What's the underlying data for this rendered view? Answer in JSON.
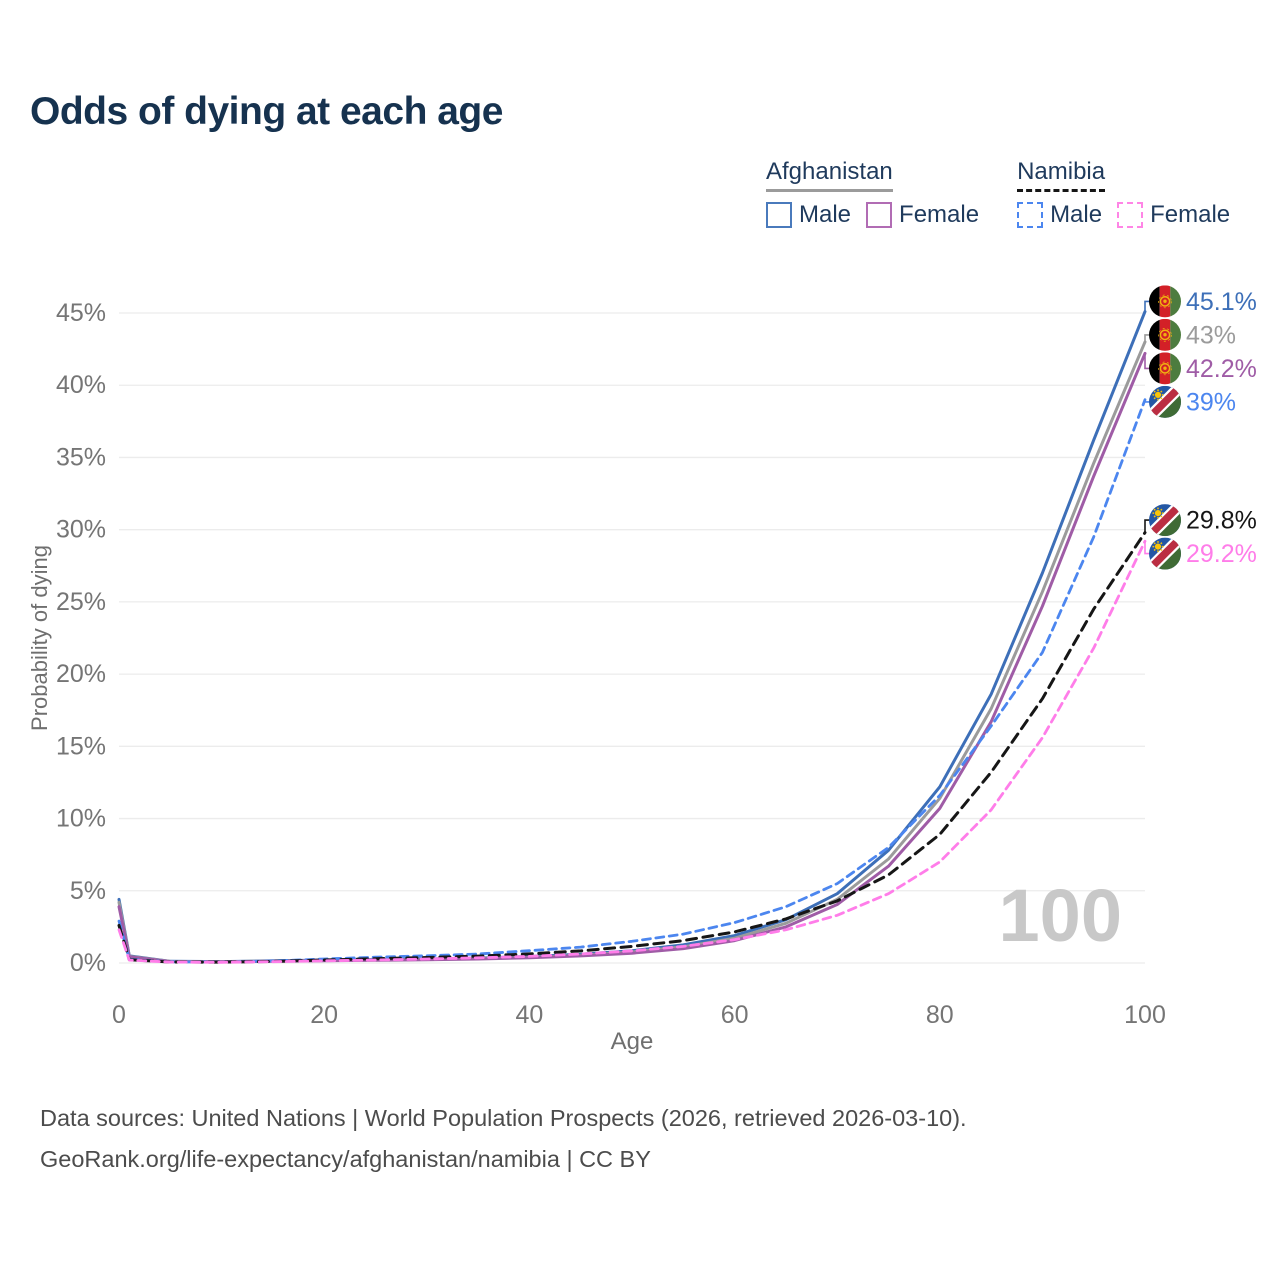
{
  "title": "Odds of dying at each age",
  "legend": {
    "afghanistan": {
      "label": "Afghanistan",
      "male_label": "Male",
      "female_label": "Female"
    },
    "namibia": {
      "label": "Namibia",
      "male_label": "Male",
      "female_label": "Female"
    }
  },
  "watermark": "100",
  "footer": {
    "line1": "Data sources: United Nations | World Population Prospects (2026, retrieved 2026-03-10).",
    "line2": "GeoRank.org/life-expectancy/afghanistan/namibia | CC BY"
  },
  "colors": {
    "title_text": "#16324f",
    "legend_text": "#1f3a5c",
    "axis_text": "#757575",
    "gridline": "#ececec",
    "watermark": "#c8c8c8",
    "footer_text": "#4c4c4c",
    "afghanistan_underline": "#9b9b9b",
    "namibia_underline": "#161616",
    "swatch_afghanistan_male": "#4a7abc",
    "swatch_afghanistan_female": "#b16cb4",
    "swatch_namibia_male": "#4c86ef",
    "swatch_namibia_female": "#ff85e6"
  },
  "chart_data": {
    "type": "line",
    "title": "Odds of dying at each age",
    "xlabel": "Age",
    "ylabel": "Probability of dying",
    "xlim": [
      0,
      100
    ],
    "ylim": [
      0,
      47
    ],
    "xticks": [
      0,
      20,
      40,
      60,
      80,
      100
    ],
    "yticks": [
      0,
      5,
      10,
      15,
      20,
      25,
      30,
      35,
      40,
      45
    ],
    "ytick_suffix": "%",
    "grid": true,
    "legend_position": "top-right",
    "ages": [
      0,
      1,
      5,
      10,
      15,
      20,
      25,
      30,
      35,
      40,
      45,
      50,
      55,
      60,
      65,
      70,
      75,
      80,
      85,
      90,
      95,
      100
    ],
    "series": [
      {
        "name": "Afghanistan Male",
        "country": "afghanistan",
        "sex": "male",
        "line": "solid",
        "color": "#3d6fb8",
        "end_value": 45.1,
        "end_label": "45.1%",
        "values": [
          4.4,
          0.5,
          0.12,
          0.1,
          0.15,
          0.2,
          0.24,
          0.28,
          0.34,
          0.45,
          0.6,
          0.85,
          1.25,
          1.9,
          3.0,
          4.8,
          7.8,
          12.2,
          18.6,
          27.0,
          36.2,
          45.1
        ]
      },
      {
        "name": "Afghanistan Both sexes",
        "country": "afghanistan",
        "sex": "both",
        "line": "solid",
        "color": "#9b9b9b",
        "end_value": 43,
        "end_label": "43%",
        "values": [
          4.2,
          0.46,
          0.11,
          0.09,
          0.13,
          0.17,
          0.21,
          0.25,
          0.31,
          0.4,
          0.54,
          0.76,
          1.12,
          1.72,
          2.75,
          4.4,
          7.2,
          11.4,
          17.6,
          25.7,
          34.6,
          43.0
        ]
      },
      {
        "name": "Afghanistan Female",
        "country": "afghanistan",
        "sex": "female",
        "line": "solid",
        "color": "#9f5ca6",
        "end_value": 42.2,
        "end_label": "42.2%",
        "values": [
          3.9,
          0.43,
          0.1,
          0.08,
          0.12,
          0.15,
          0.19,
          0.23,
          0.28,
          0.36,
          0.49,
          0.68,
          1.0,
          1.55,
          2.5,
          4.05,
          6.7,
          10.7,
          16.7,
          24.7,
          33.7,
          42.2
        ]
      },
      {
        "name": "Namibia Male",
        "country": "namibia",
        "sex": "male",
        "line": "dashed",
        "color": "#4c86ef",
        "end_value": 39,
        "end_label": "39%",
        "values": [
          2.9,
          0.26,
          0.08,
          0.07,
          0.14,
          0.28,
          0.4,
          0.5,
          0.62,
          0.85,
          1.1,
          1.5,
          2.0,
          2.8,
          3.9,
          5.5,
          8.0,
          11.6,
          16.4,
          21.5,
          29.5,
          39.0
        ]
      },
      {
        "name": "Namibia Both sexes",
        "country": "namibia",
        "sex": "both",
        "line": "dashed",
        "color": "#161616",
        "end_value": 29.8,
        "end_label": "29.8%",
        "values": [
          2.6,
          0.23,
          0.07,
          0.06,
          0.11,
          0.21,
          0.3,
          0.38,
          0.48,
          0.63,
          0.84,
          1.15,
          1.55,
          2.15,
          3.05,
          4.3,
          6.1,
          8.9,
          13.2,
          18.3,
          24.5,
          29.8
        ]
      },
      {
        "name": "Namibia Female",
        "country": "namibia",
        "sex": "female",
        "line": "dashed",
        "color": "#ff7de9",
        "end_value": 29.2,
        "end_label": "29.2%",
        "values": [
          2.3,
          0.2,
          0.06,
          0.05,
          0.09,
          0.15,
          0.21,
          0.28,
          0.36,
          0.46,
          0.62,
          0.84,
          1.15,
          1.62,
          2.3,
          3.3,
          4.8,
          7.0,
          10.6,
          15.6,
          21.8,
          29.2
        ]
      }
    ]
  }
}
